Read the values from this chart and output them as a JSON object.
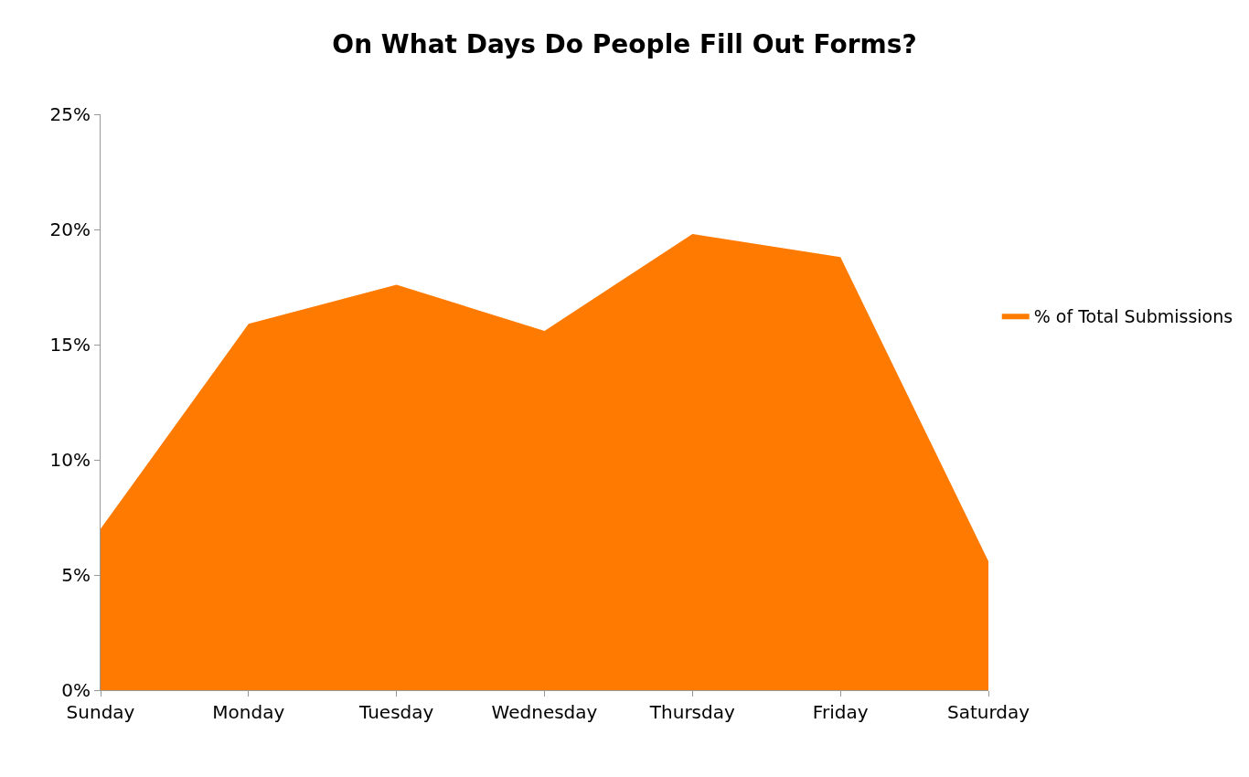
{
  "chart_data": {
    "type": "area",
    "title": "On What Days Do People Fill Out Forms?",
    "categories": [
      "Sunday",
      "Monday",
      "Tuesday",
      "Wednesday",
      "Thursday",
      "Friday",
      "Saturday"
    ],
    "series": [
      {
        "name": "% of Total Submissions",
        "color": "#ff7a00",
        "values": [
          7.0,
          15.9,
          17.6,
          15.6,
          19.8,
          18.8,
          5.6
        ]
      }
    ],
    "ylim": [
      0,
      25
    ],
    "yticks": [
      {
        "value": 0,
        "label": "0%"
      },
      {
        "value": 5,
        "label": "5%"
      },
      {
        "value": 10,
        "label": "10%"
      },
      {
        "value": 15,
        "label": "15%"
      },
      {
        "value": 20,
        "label": "20%"
      },
      {
        "value": 25,
        "label": "25%"
      }
    ],
    "legend": "right"
  }
}
